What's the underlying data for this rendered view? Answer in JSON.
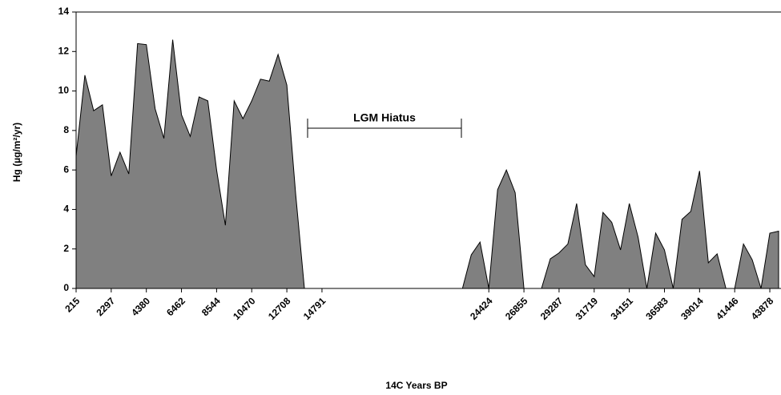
{
  "chart_data": {
    "type": "area",
    "y_label": "Hg (µg/m²/yr)",
    "x_label": "14C Years BP",
    "annotation": "LGM Hiatus",
    "color": "#808080",
    "categories": [
      "215",
      null,
      null,
      null,
      "2297",
      null,
      null,
      null,
      "4380",
      null,
      null,
      null,
      "6462",
      null,
      null,
      null,
      "8544",
      null,
      null,
      null,
      "10470",
      null,
      null,
      null,
      "12708",
      null,
      null,
      null,
      "14791",
      null,
      null,
      null,
      null,
      null,
      null,
      null,
      null,
      null,
      null,
      null,
      null,
      null,
      null,
      null,
      null,
      null,
      null,
      "24424",
      null,
      null,
      null,
      "26855",
      null,
      null,
      null,
      "29287",
      null,
      null,
      null,
      "31719",
      null,
      null,
      null,
      "34151",
      null,
      null,
      null,
      "36583",
      null,
      null,
      null,
      "39014",
      null,
      null,
      null,
      "41446",
      null,
      null,
      null,
      "43878",
      null
    ],
    "values": [
      6.7,
      10.8,
      9.0,
      9.3,
      5.7,
      6.9,
      5.8,
      12.4,
      12.35,
      9.1,
      7.6,
      12.6,
      8.8,
      7.7,
      9.7,
      9.5,
      6.0,
      3.2,
      9.5,
      8.6,
      9.5,
      10.6,
      10.5,
      11.85,
      10.3,
      4.8,
      0,
      0,
      0,
      0,
      0,
      0,
      0,
      0,
      0,
      0,
      0,
      0,
      0,
      0,
      0,
      0,
      0,
      0,
      0,
      1.7,
      2.35,
      0,
      5.0,
      6.0,
      4.85,
      0,
      0,
      0,
      1.5,
      1.8,
      2.25,
      4.3,
      1.2,
      0.6,
      3.85,
      3.35,
      1.95,
      4.3,
      2.6,
      0,
      2.8,
      1.95,
      0,
      3.5,
      3.9,
      5.95,
      1.3,
      1.75,
      0,
      0,
      2.25,
      1.45,
      0,
      2.8,
      2.9
    ],
    "ylim": [
      0,
      14
    ],
    "yticks": [
      0,
      2,
      4,
      6,
      8,
      10,
      12,
      14
    ],
    "grid": false
  }
}
